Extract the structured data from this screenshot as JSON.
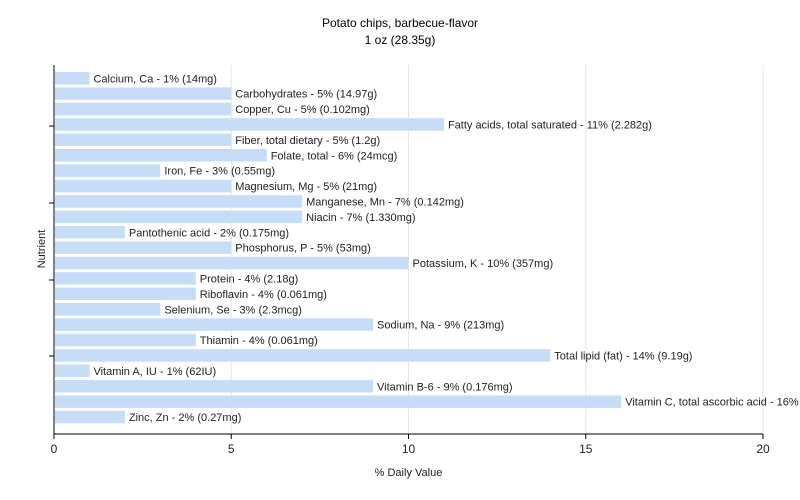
{
  "chart_data": {
    "type": "bar",
    "orientation": "horizontal",
    "title": "Potato chips, barbecue-flavor",
    "subtitle": "1 oz (28.35g)",
    "xlabel": "% Daily Value",
    "ylabel": "Nutrient",
    "xlim": [
      0,
      20
    ],
    "xticks": [
      0,
      5,
      10,
      15,
      20
    ],
    "grid": true,
    "bar_color": "#c6dcf7",
    "categories": [
      "Calcium, Ca",
      "Carbohydrates",
      "Copper, Cu",
      "Fatty acids, total saturated",
      "Fiber, total dietary",
      "Folate, total",
      "Iron, Fe",
      "Magnesium, Mg",
      "Manganese, Mn",
      "Niacin",
      "Pantothenic acid",
      "Phosphorus, P",
      "Potassium, K",
      "Protein",
      "Riboflavin",
      "Selenium, Se",
      "Sodium, Na",
      "Thiamin",
      "Total lipid (fat)",
      "Vitamin A, IU",
      "Vitamin B-6",
      "Vitamin C, total ascorbic acid",
      "Zinc, Zn"
    ],
    "values": [
      1,
      5,
      5,
      11,
      5,
      6,
      3,
      5,
      7,
      7,
      2,
      5,
      10,
      4,
      4,
      3,
      9,
      4,
      14,
      1,
      9,
      16,
      2
    ],
    "labels": [
      "Calcium, Ca - 1% (14mg)",
      "Carbohydrates - 5% (14.97g)",
      "Copper, Cu - 5% (0.102mg)",
      "Fatty acids, total saturated - 11% (2.282g)",
      "Fiber, total dietary - 5% (1.2g)",
      "Folate, total - 6% (24mcg)",
      "Iron, Fe - 3% (0.55mg)",
      "Magnesium, Mg - 5% (21mg)",
      "Manganese, Mn - 7% (0.142mg)",
      "Niacin - 7% (1.330mg)",
      "Pantothenic acid - 2% (0.175mg)",
      "Phosphorus, P - 5% (53mg)",
      "Potassium, K - 10% (357mg)",
      "Protein - 4% (2.18g)",
      "Riboflavin - 4% (0.061mg)",
      "Selenium, Se - 3% (2.3mcg)",
      "Sodium, Na - 9% (213mg)",
      "Thiamin - 4% (0.061mg)",
      "Total lipid (fat) - 14% (9.19g)",
      "Vitamin A, IU - 1% (62IU)",
      "Vitamin B-6 - 9% (0.176mg)",
      "Vitamin C, total ascorbic acid - 16% (9.6mg)",
      "Zinc, Zn - 2% (0.27mg)"
    ]
  }
}
